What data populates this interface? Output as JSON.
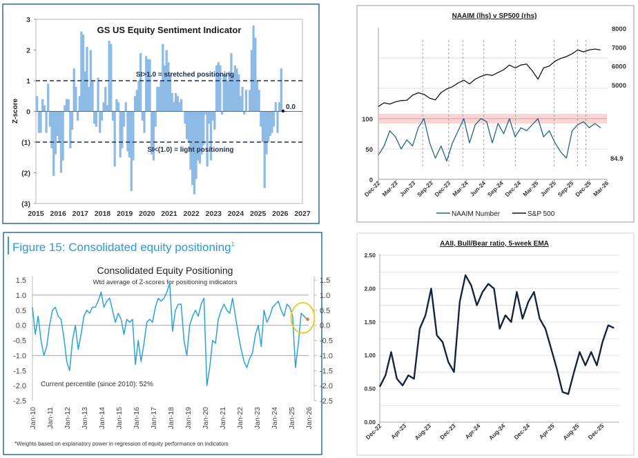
{
  "colors": {
    "gs_bar": "#8dbbe6",
    "gs_dash": "#1c2d4d",
    "naaim_line": "#1f6585",
    "sp_line": "#111111",
    "naaim_band": "#f7cccc",
    "cep_line": "#27a2dd",
    "cep_title": "#2a9bd6",
    "cep_circle": "#f2c51c",
    "cep_dot": "#f07a3a",
    "aaii_line": "#13243c"
  },
  "chart_data": [
    {
      "type": "bar",
      "title": "GS US Equity Sentiment Indicator",
      "ylabel": "Z-score",
      "xlabel": "",
      "xlim": [
        2015,
        2027
      ],
      "ylim": [
        -3,
        3
      ],
      "x_start": 2015.0,
      "x_step_years": 0.0833,
      "yticks": [
        3,
        2,
        1,
        0,
        -1,
        -2,
        -3
      ],
      "ytick_labels": [
        "3",
        "2",
        "1",
        "0",
        "(1)",
        "(2)",
        "(3)"
      ],
      "xtick_labels": [
        "2015",
        "2016",
        "2017",
        "2018",
        "2019",
        "2020",
        "2021",
        "2022",
        "2023",
        "2024",
        "2025",
        "2026",
        "2027"
      ],
      "reference_lines": [
        1,
        -1
      ],
      "annotations": {
        "stretched": "SI>1.0 = stretched positioning",
        "light": "SI<(1.0) = light positioning",
        "current": "0.0"
      },
      "values": [
        0.5,
        -0.7,
        -0.7,
        0.4,
        0.2,
        -0.7,
        0.9,
        -0.5,
        -1.2,
        -2.1,
        -1.4,
        -0.8,
        -1.0,
        -2.0,
        -1.6,
        0.2,
        0.4,
        0.4,
        -1.2,
        -0.6,
        1.4,
        0.8,
        -0.3,
        0.5,
        2.6,
        2.5,
        1.3,
        2.1,
        0.8,
        2.0,
        1.0,
        -0.4,
        -0.5,
        1.1,
        -0.7,
        -0.3,
        0.3,
        0.8,
        0.2,
        2.3,
        2.2,
        -0.3,
        -1.8,
        0.4,
        0.3,
        -1.5,
        -1.2,
        -0.5,
        0.3,
        -1.3,
        -1.5,
        -2.6,
        -1.6,
        0.5,
        0.7,
        1.0,
        1.9,
        -0.3,
        -0.7,
        1.8,
        1.7,
        1.7,
        -1.4,
        -1.6,
        -0.5,
        0.8,
        0.8,
        1.0,
        2.2,
        1.5,
        2.0,
        1.6,
        1.2,
        0.6,
        0.3,
        0.6,
        0.5,
        0.3,
        0.4,
        0.0,
        -0.4,
        -0.9,
        -1.0,
        -1.9,
        -2.4,
        -2.7,
        -2.2,
        -1.6,
        -1.7,
        -1.4,
        -1.1,
        -0.1,
        -1.8,
        -0.4,
        -1.6,
        -0.3,
        -0.6,
        1.5,
        1.6,
        1.5,
        -0.1,
        1.2,
        1.2,
        1.0,
        1.3,
        1.9,
        1.2,
        1.5,
        1.4,
        1.2,
        0.5,
        0.8,
        -0.1,
        0.7,
        0.0,
        0.7,
        2.0,
        2.8,
        2.4,
        1.0,
        0.7,
        -0.5,
        -1.0,
        -2.5,
        -1.4,
        -1.0,
        -0.8,
        -0.7,
        -0.5,
        0.3,
        -0.7,
        0.3,
        1.4,
        0.0
      ]
    },
    {
      "type": "line",
      "title": "NAAIM (lhs) v SP500 (rhs)",
      "x_start": 2022.92,
      "x_end": 2026.08,
      "xlim": [
        2022.92,
        2026.17
      ],
      "ylim_left": [
        0,
        250
      ],
      "ylim_right": [
        3000,
        8000
      ],
      "ytick_labels_left": [
        "0",
        "50",
        "100"
      ],
      "yticks_left": [
        0,
        50,
        100
      ],
      "ytick_labels_right": [
        "5000",
        "6000",
        "7000",
        "8000"
      ],
      "yticks_right": [
        5000,
        6000,
        7000,
        8000
      ],
      "xtick_labels": [
        "Dec-22",
        "Mar-23",
        "Jun-23",
        "Sep-23",
        "Dec-23",
        "Mar-24",
        "Jun-24",
        "Sep-24",
        "Dec-24",
        "Mar-25",
        "Jun-25",
        "Sep-25",
        "Dec-25",
        "Mar-26"
      ],
      "highlight_band": [
        92,
        108
      ],
      "peak_markers": [
        2023.55,
        2023.92,
        2024.12,
        2024.42,
        2024.87,
        2025.42,
        2025.75,
        2025.87
      ],
      "last_value_label": "84.9",
      "series": [
        {
          "name": "NAAIM Number",
          "axis": "left",
          "values": [
            40,
            55,
            80,
            70,
            50,
            65,
            55,
            85,
            100,
            60,
            35,
            55,
            30,
            60,
            80,
            100,
            60,
            90,
            100,
            95,
            60,
            92,
            75,
            100,
            70,
            85,
            80,
            90,
            100,
            70,
            80,
            60,
            45,
            35,
            80,
            90,
            95,
            85,
            92,
            84.9
          ]
        },
        {
          "name": "S&P 500",
          "axis": "right",
          "values": [
            3850,
            4050,
            3980,
            4100,
            4170,
            4180,
            4450,
            4580,
            4500,
            4290,
            4200,
            4590,
            4780,
            4900,
            5100,
            5250,
            5050,
            5300,
            5450,
            5550,
            5500,
            5650,
            5800,
            6050,
            5900,
            6050,
            6100,
            5750,
            5300,
            5900,
            6000,
            6250,
            6400,
            6500,
            6650,
            6850,
            6750,
            6850,
            6900,
            6850
          ]
        }
      ]
    },
    {
      "type": "line",
      "figure_label": "Figure 15: Consolidated equity positioning",
      "figure_superscript": "1",
      "title": "Consolidated Equity Positioning",
      "subtitle": "Wtd average of Z-scores for positioning indicators",
      "annotation": "Current percentile (since 2010): 52%",
      "footnote": "*Weights based on explanatory power in regression of equity performance on indicators",
      "x_start": 2010.0,
      "x_end": 2025.9,
      "xlim": [
        2010,
        2026
      ],
      "ylim": [
        -2.5,
        1.5
      ],
      "yticks": [
        1.5,
        1.0,
        0.5,
        0.0,
        -0.5,
        -1.0,
        -1.5,
        -2.0,
        -2.5
      ],
      "ytick_labels": [
        "1.5",
        "1.0",
        "0.5",
        "0.0",
        "-0.5",
        "-1.0",
        "-1.5",
        "-2.0",
        "-2.5"
      ],
      "xtick_labels": [
        "Jan-10",
        "Jan-11",
        "Jan-12",
        "Jan-13",
        "Jan-14",
        "Jan-15",
        "Jan-16",
        "Jan-17",
        "Jan-18",
        "Jan-19",
        "Jan-20",
        "Jan-21",
        "Jan-22",
        "Jan-23",
        "Jan-24",
        "Jan-25",
        "Jan-26"
      ],
      "grid_values": [
        1.0,
        0.0,
        -1.0
      ],
      "current_value": 0.2,
      "values": [
        0.6,
        -0.3,
        0.3,
        -0.5,
        -1.0,
        -0.7,
        0.0,
        0.5,
        0.6,
        0.3,
        0.2,
        -0.4,
        -1.2,
        -1.5,
        -0.5,
        0.0,
        -0.8,
        -0.3,
        0.3,
        0.5,
        0.4,
        0.6,
        0.6,
        0.8,
        1.1,
        0.6,
        0.8,
        0.9,
        0.5,
        0.1,
        0.4,
        0.2,
        -0.3,
        0.2,
        0.1,
        0.2,
        -1.3,
        -0.5,
        -1.2,
        -0.6,
        0.1,
        0.2,
        0.1,
        0.6,
        0.9,
        0.8,
        0.9,
        1.1,
        1.4,
        -0.2,
        0.5,
        0.7,
        0.7,
        -0.5,
        -1.0,
        0.0,
        0.3,
        0.5,
        0.3,
        0.7,
        0.9,
        -2.0,
        -1.4,
        -0.5,
        -0.6,
        0.2,
        0.5,
        0.7,
        0.5,
        0.4,
        0.9,
        0.3,
        -0.3,
        -0.8,
        -1.2,
        -1.4,
        -1.1,
        -0.9,
        -0.3,
        0.0,
        -0.7,
        0.5,
        0.1,
        0.3,
        0.6,
        0.7,
        0.8,
        0.5,
        0.3,
        0.7,
        0.6,
        0.3,
        -1.4,
        -0.6,
        0.4,
        0.3,
        0.2
      ]
    },
    {
      "type": "line",
      "title": "AAII, Bull/Bear ratio, 5-week EMA",
      "x_start": 2022.92,
      "x_end": 2026.08,
      "xlim": [
        2022.92,
        2026.17
      ],
      "ylim": [
        0,
        2.5
      ],
      "yticks": [
        2.5,
        2.0,
        1.5,
        1.0,
        0.5,
        0.0
      ],
      "ytick_labels": [
        "2.50",
        "2.00",
        "1.50",
        "1.00",
        "0.50",
        "0.00"
      ],
      "xtick_labels": [
        "Dec-22",
        "Apr-23",
        "Aug-23",
        "Dec-23",
        "Apr-24",
        "Aug-24",
        "Dec-24",
        "Apr-25",
        "Aug-25",
        "Dec-25"
      ],
      "values": [
        0.53,
        0.7,
        1.05,
        0.65,
        0.55,
        0.7,
        0.65,
        1.4,
        1.6,
        2.0,
        1.3,
        1.2,
        0.9,
        0.75,
        1.8,
        2.2,
        2.05,
        1.75,
        1.95,
        2.07,
        2.0,
        1.4,
        1.6,
        1.5,
        1.95,
        1.55,
        1.8,
        1.95,
        1.55,
        1.4,
        1.1,
        0.8,
        0.45,
        0.42,
        0.75,
        1.05,
        0.85,
        1.05,
        0.85,
        1.2,
        1.45,
        1.41
      ]
    }
  ]
}
